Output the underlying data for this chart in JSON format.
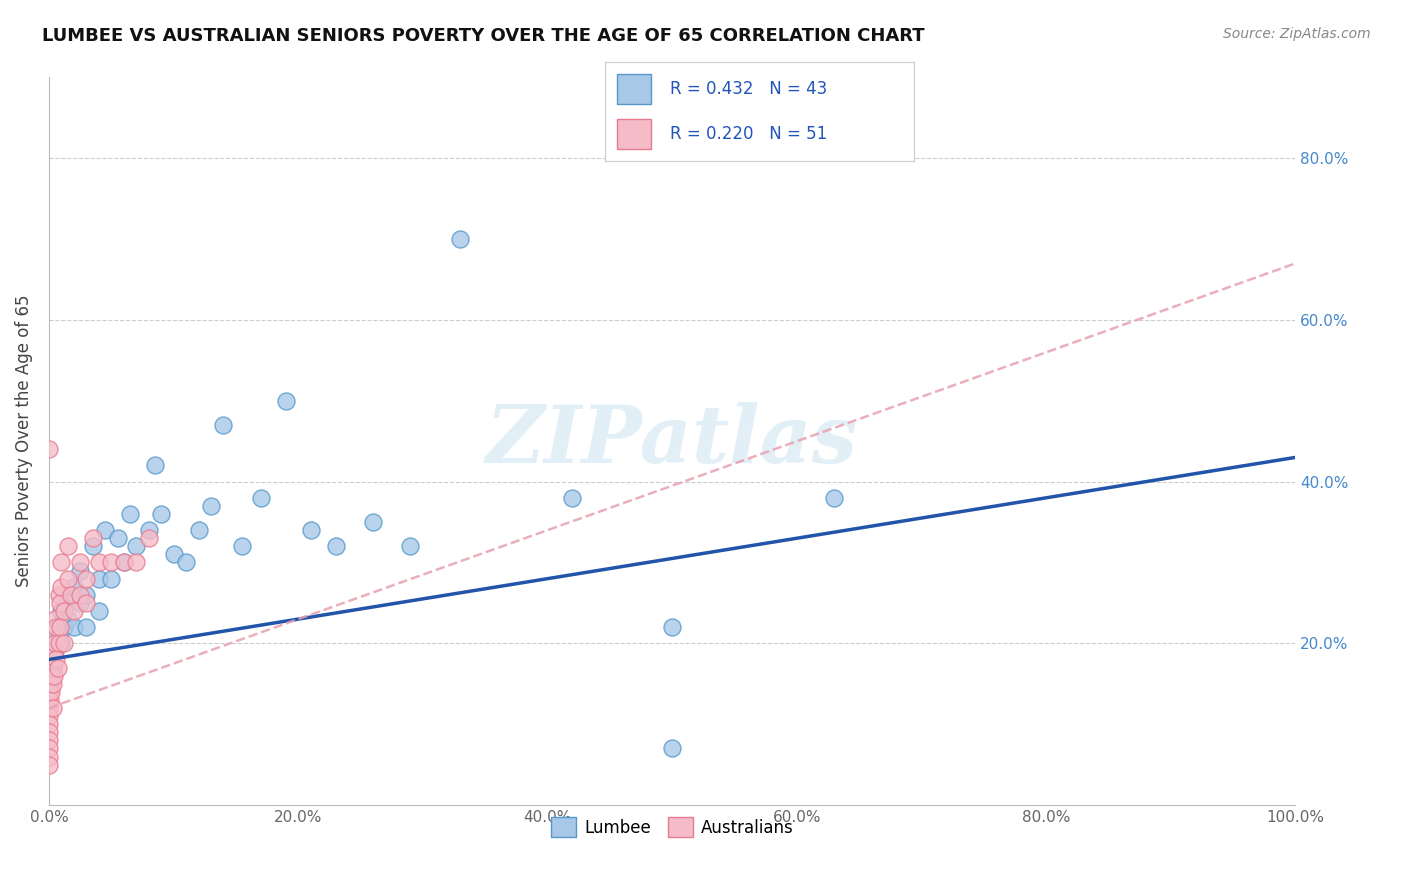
{
  "title": "LUMBEE VS AUSTRALIAN SENIORS POVERTY OVER THE AGE OF 65 CORRELATION CHART",
  "source": "Source: ZipAtlas.com",
  "ylabel": "Seniors Poverty Over the Age of 65",
  "xlim": [
    0.0,
    1.0
  ],
  "ylim": [
    0.0,
    0.9
  ],
  "xticks": [
    0.0,
    0.2,
    0.4,
    0.6,
    0.8,
    1.0
  ],
  "xticklabels": [
    "0.0%",
    "20.0%",
    "40.0%",
    "60.0%",
    "80.0%",
    "100.0%"
  ],
  "yticks_left": [
    0.2,
    0.4,
    0.6,
    0.8
  ],
  "yticklabels_left": [
    "20.0%",
    "40.0%",
    "60.0%",
    "80.0%"
  ],
  "yticks_right": [
    0.2,
    0.4,
    0.6,
    0.8
  ],
  "yticklabels_right": [
    "20.0%",
    "40.0%",
    "60.0%",
    "80.0%"
  ],
  "grid_color": "#cccccc",
  "background_color": "#ffffff",
  "lumbee_color": "#a8c8e8",
  "lumbee_edge_color": "#5599cc",
  "australian_color": "#f5bcc8",
  "australian_edge_color": "#e87a90",
  "lumbee_R": 0.432,
  "lumbee_N": 43,
  "australian_R": 0.22,
  "australian_N": 51,
  "lumbee_line_color": "#2255aa",
  "lumbee_line_intercept": 0.18,
  "lumbee_line_slope": 0.25,
  "australian_line_color": "#e8a0b0",
  "australian_line_intercept": 0.12,
  "australian_line_slope": 0.55,
  "watermark_text": "ZIPatlas",
  "watermark_color": "#c8e0f0",
  "legend_R_color": "#2255bb",
  "right_tick_color": "#4488cc",
  "lumbee_x": [
    0.003,
    0.005,
    0.008,
    0.01,
    0.01,
    0.012,
    0.015,
    0.015,
    0.02,
    0.02,
    0.025,
    0.025,
    0.03,
    0.03,
    0.035,
    0.04,
    0.04,
    0.045,
    0.05,
    0.055,
    0.06,
    0.065,
    0.07,
    0.08,
    0.085,
    0.09,
    0.1,
    0.11,
    0.12,
    0.13,
    0.14,
    0.155,
    0.17,
    0.19,
    0.21,
    0.23,
    0.26,
    0.29,
    0.33,
    0.42,
    0.5,
    0.63,
    0.5
  ],
  "lumbee_y": [
    0.17,
    0.19,
    0.21,
    0.2,
    0.24,
    0.22,
    0.23,
    0.26,
    0.22,
    0.27,
    0.25,
    0.29,
    0.22,
    0.26,
    0.32,
    0.24,
    0.28,
    0.34,
    0.28,
    0.33,
    0.3,
    0.36,
    0.32,
    0.34,
    0.42,
    0.36,
    0.31,
    0.3,
    0.34,
    0.37,
    0.47,
    0.32,
    0.38,
    0.5,
    0.34,
    0.32,
    0.35,
    0.32,
    0.7,
    0.38,
    0.22,
    0.38,
    0.07
  ],
  "australian_x": [
    0.0,
    0.0,
    0.0,
    0.0,
    0.0,
    0.0,
    0.0,
    0.0,
    0.0,
    0.0,
    0.0,
    0.0,
    0.0,
    0.0,
    0.0,
    0.001,
    0.001,
    0.002,
    0.002,
    0.003,
    0.003,
    0.003,
    0.004,
    0.004,
    0.005,
    0.005,
    0.006,
    0.006,
    0.007,
    0.008,
    0.008,
    0.009,
    0.009,
    0.01,
    0.01,
    0.012,
    0.012,
    0.015,
    0.015,
    0.018,
    0.02,
    0.025,
    0.025,
    0.03,
    0.03,
    0.035,
    0.04,
    0.05,
    0.06,
    0.07,
    0.08
  ],
  "australian_y": [
    0.13,
    0.15,
    0.14,
    0.12,
    0.11,
    0.1,
    0.09,
    0.08,
    0.07,
    0.06,
    0.05,
    0.13,
    0.44,
    0.14,
    0.16,
    0.13,
    0.15,
    0.14,
    0.16,
    0.15,
    0.17,
    0.12,
    0.16,
    0.19,
    0.2,
    0.23,
    0.18,
    0.22,
    0.17,
    0.2,
    0.26,
    0.22,
    0.25,
    0.27,
    0.3,
    0.2,
    0.24,
    0.28,
    0.32,
    0.26,
    0.24,
    0.26,
    0.3,
    0.25,
    0.28,
    0.33,
    0.3,
    0.3,
    0.3,
    0.3,
    0.33
  ]
}
